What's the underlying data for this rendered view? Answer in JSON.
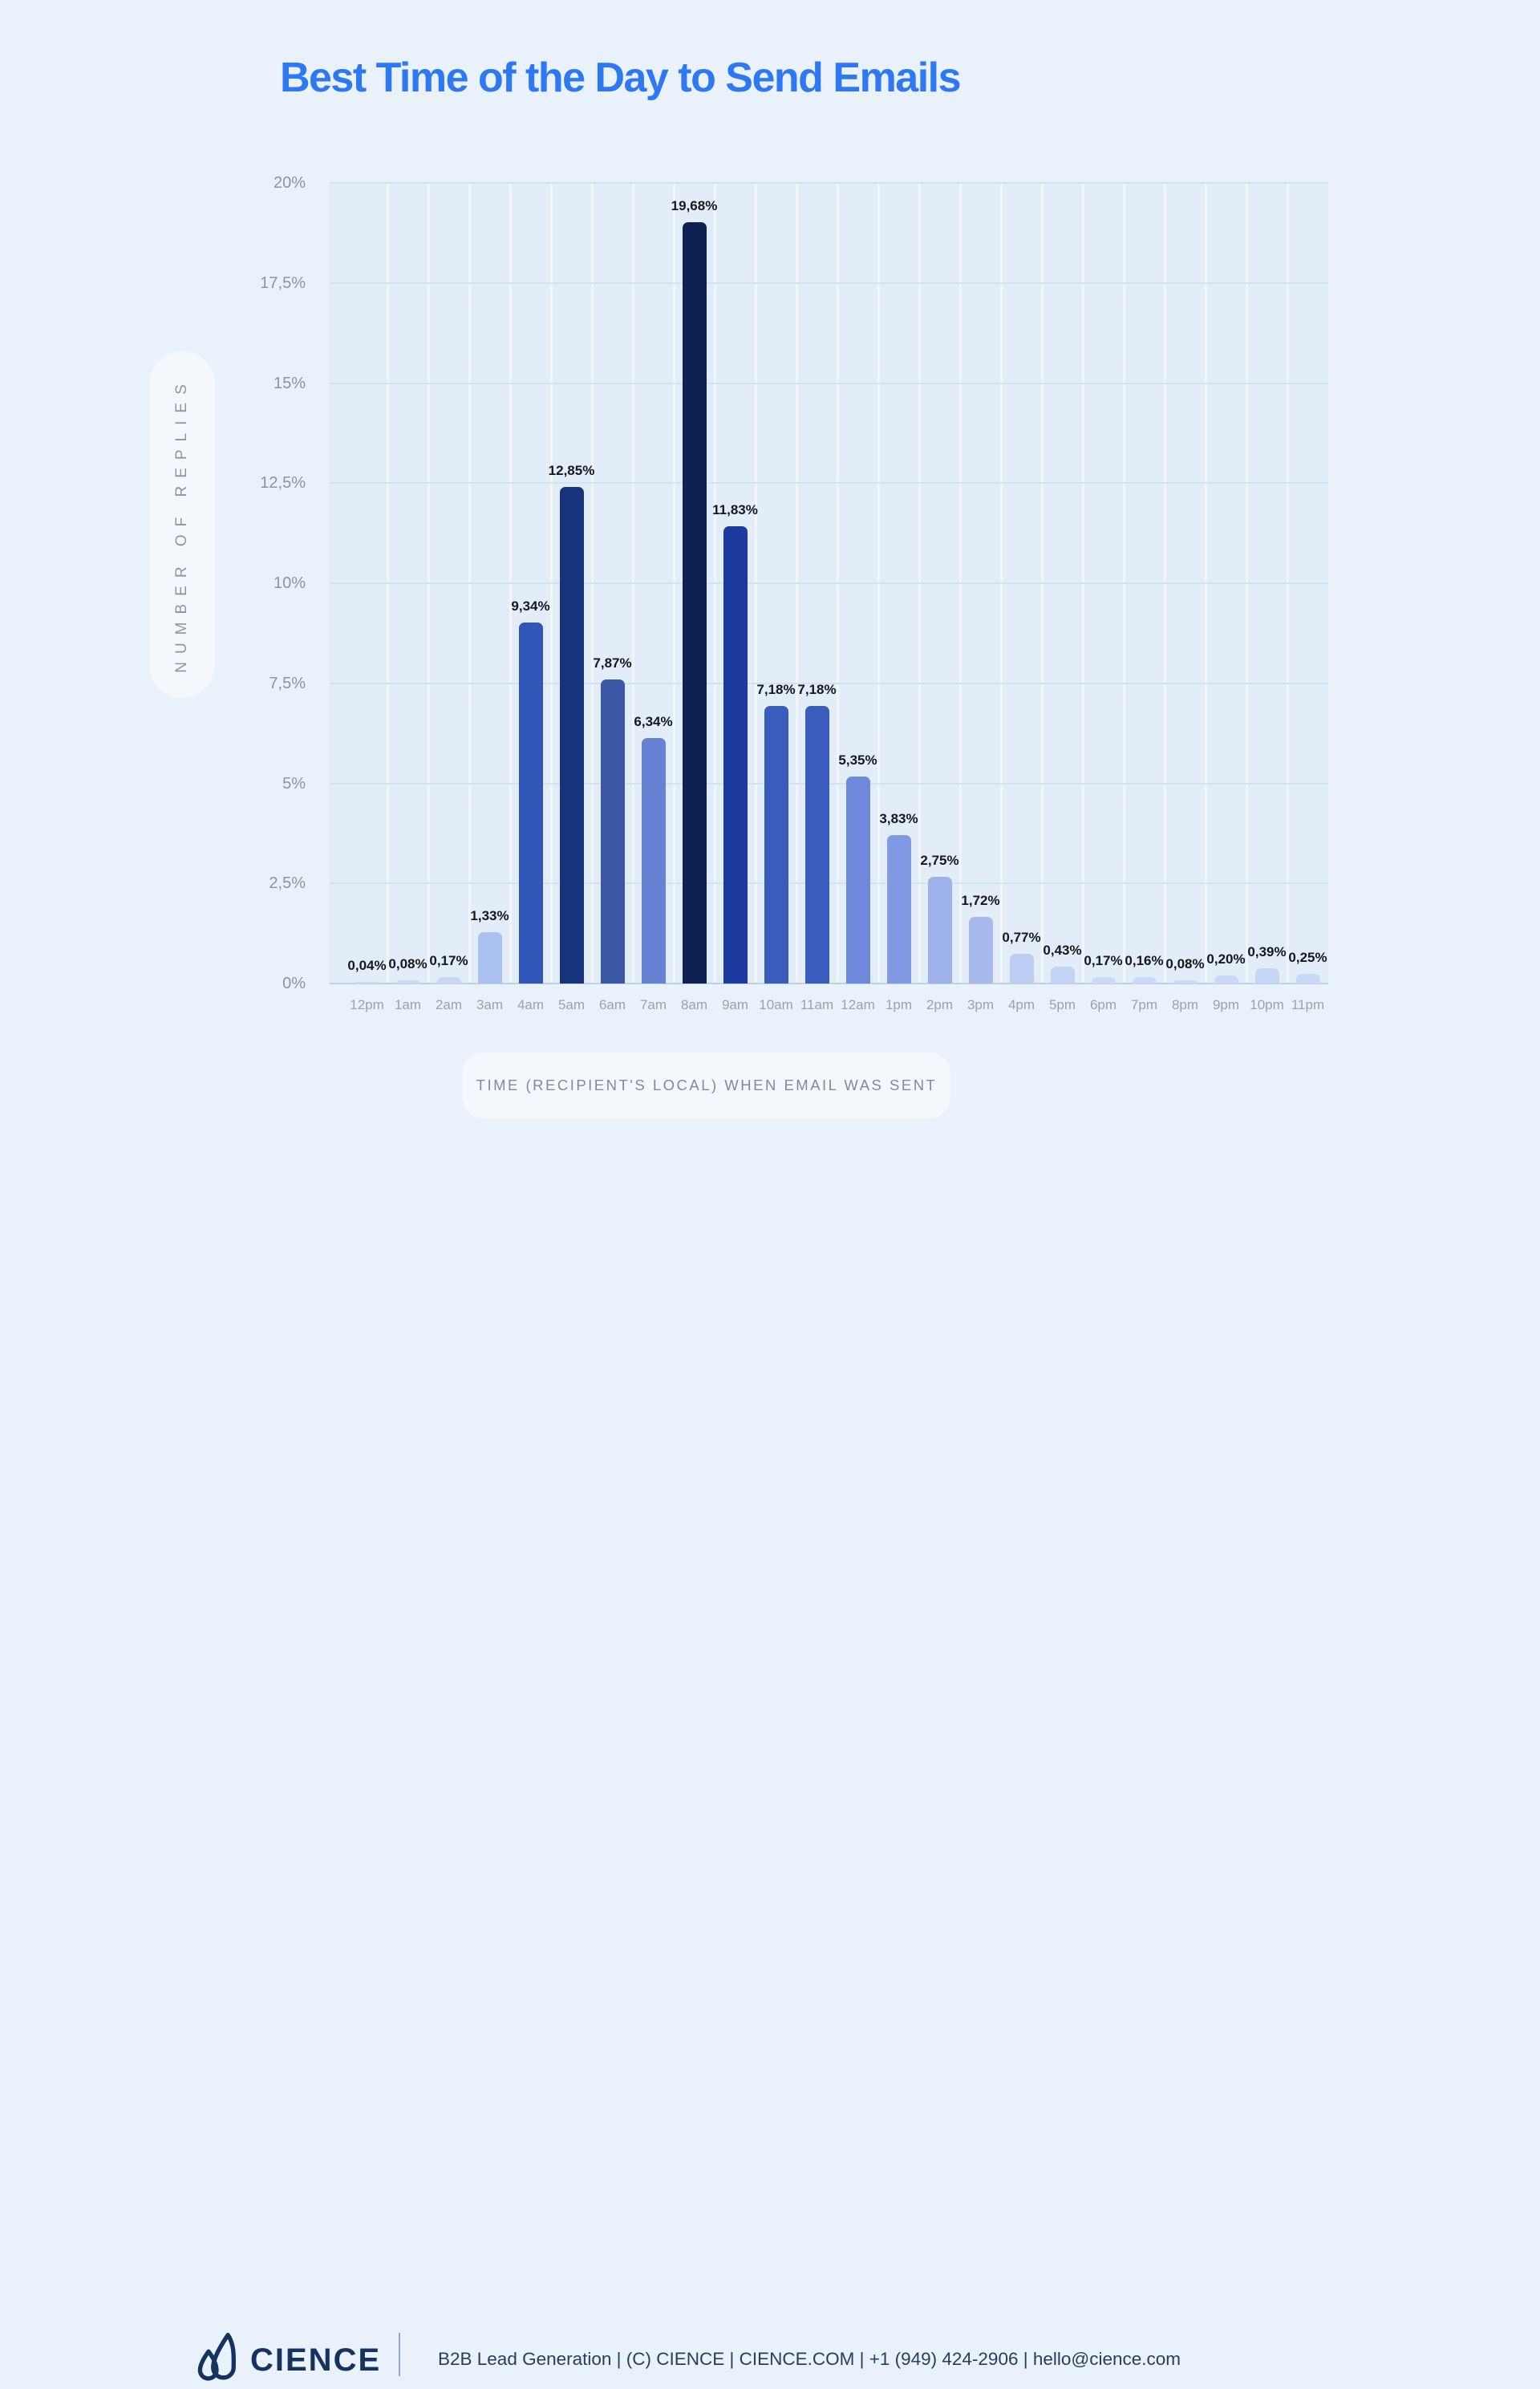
{
  "chart_data": {
    "type": "bar",
    "title": "Best Time of the Day to Send Emails",
    "xlabel": "TIME (RECIPIENT'S LOCAL) WHEN EMAIL WAS SENT",
    "ylabel": "NUMBER OF REPLIES",
    "ylim": [
      0,
      20
    ],
    "grid": true,
    "legend": false,
    "yticks": [
      0,
      2.5,
      5,
      7.5,
      10,
      12.5,
      15,
      17.5,
      20
    ],
    "ytick_labels": [
      "0%",
      "2,5%",
      "5%",
      "7,5%",
      "10%",
      "12,5%",
      "15%",
      "17,5%",
      "20%"
    ],
    "categories": [
      "12pm",
      "1am",
      "2am",
      "3am",
      "4am",
      "5am",
      "6am",
      "7am",
      "8am",
      "9am",
      "10am",
      "11am",
      "12am",
      "1pm",
      "2pm",
      "3pm",
      "4pm",
      "5pm",
      "6pm",
      "7pm",
      "8pm",
      "9pm",
      "10pm",
      "11pm"
    ],
    "values": [
      0.04,
      0.08,
      0.17,
      1.33,
      9.34,
      12.85,
      7.87,
      6.34,
      19.68,
      11.83,
      7.18,
      7.18,
      5.35,
      3.83,
      2.75,
      1.72,
      0.77,
      0.43,
      0.17,
      0.16,
      0.08,
      0.2,
      0.39,
      0.25
    ],
    "value_labels": [
      "0,04%",
      "0,08%",
      "0,17%",
      "1,33%",
      "9,34%",
      "12,85%",
      "7,87%",
      "6,34%",
      "19,68%",
      "11,83%",
      "7,18%",
      "7,18%",
      "5,35%",
      "3,83%",
      "2,75%",
      "1,72%",
      "0,77%",
      "0,43%",
      "0,17%",
      "0,16%",
      "0,08%",
      "0,20%",
      "0,39%",
      "0,25%"
    ],
    "bar_colors": [
      "#cbd9f6",
      "#cbd9f6",
      "#c7d6f5",
      "#aac1f1",
      "#3156b8",
      "#17337c",
      "#3b57a4",
      "#6781d3",
      "#0d2153",
      "#1d3b9e",
      "#3a5dbd",
      "#3a5dbd",
      "#6e88dc",
      "#8199e3",
      "#9db1ea",
      "#a6baee",
      "#bdcdf4",
      "#c4d3f5",
      "#cbd9f6",
      "#cbd9f6",
      "#cbd9f6",
      "#cbd9f6",
      "#c6d5f5",
      "#c9d8f6"
    ]
  },
  "theme": {
    "page_bg": "#e9f1fa",
    "panel_bg": "#e2edf8",
    "grid_color": "#d3e2f0",
    "axis_line_color": "#bdd2e6",
    "title_color": "#2e78f3",
    "value_label_color": "#14181f",
    "tick_color": "#98a3b1",
    "brand_navy": "#16335f"
  },
  "footer": {
    "brand": "CIENCE",
    "text": "B2B Lead Generation | (C) CIENCE | CIENCE.COM | +1 (949) 424-2906 | hello@cience.com"
  }
}
